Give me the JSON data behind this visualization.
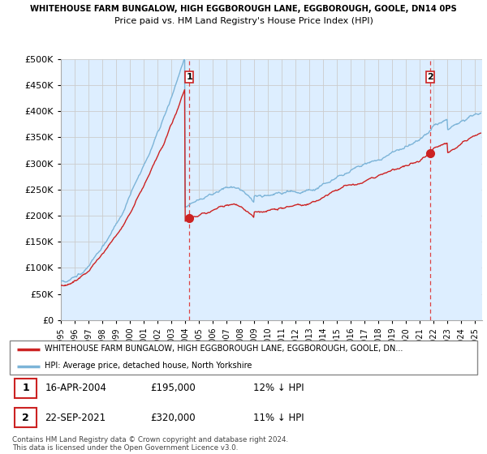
{
  "title_line1": "WHITEHOUSE FARM BUNGALOW, HIGH EGGBOROUGH LANE, EGGBOROUGH, GOOLE, DN14 0PS",
  "title_line2": "Price paid vs. HM Land Registry's House Price Index (HPI)",
  "ylabel_ticks": [
    "£0",
    "£50K",
    "£100K",
    "£150K",
    "£200K",
    "£250K",
    "£300K",
    "£350K",
    "£400K",
    "£450K",
    "£500K"
  ],
  "ytick_values": [
    0,
    50000,
    100000,
    150000,
    200000,
    250000,
    300000,
    350000,
    400000,
    450000,
    500000
  ],
  "ylim": [
    0,
    500000
  ],
  "xlim_start": 1995.0,
  "xlim_end": 2025.5,
  "hpi_color": "#7cb4d8",
  "hpi_fill_color": "#ddeeff",
  "price_color": "#cc2222",
  "dashed_color": "#dd4444",
  "marker1_year": 2004.29,
  "marker1_price": 195000,
  "marker1_label": "1",
  "marker2_year": 2021.72,
  "marker2_price": 320000,
  "marker2_label": "2",
  "legend_property": "WHITEHOUSE FARM BUNGALOW, HIGH EGGBOROUGH LANE, EGGBOROUGH, GOOLE, DN...",
  "legend_hpi": "HPI: Average price, detached house, North Yorkshire",
  "annotation1_date": "16-APR-2004",
  "annotation1_price": "£195,000",
  "annotation1_hpi": "12% ↓ HPI",
  "annotation2_date": "22-SEP-2021",
  "annotation2_price": "£320,000",
  "annotation2_hpi": "11% ↓ HPI",
  "footer": "Contains HM Land Registry data © Crown copyright and database right 2024.\nThis data is licensed under the Open Government Licence v3.0.",
  "background_color": "#ffffff",
  "grid_color": "#cccccc"
}
